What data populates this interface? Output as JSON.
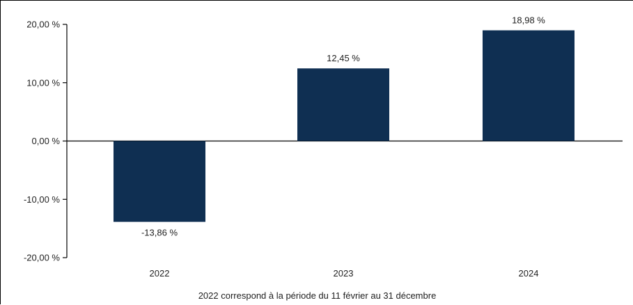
{
  "chart_data": {
    "type": "bar",
    "categories": [
      "2022",
      "2023",
      "2024"
    ],
    "values": [
      -13.86,
      12.45,
      18.98
    ],
    "value_labels": [
      "-13,86 %",
      "12,45 %",
      "18,98 %"
    ],
    "ylim": [
      -20,
      20
    ],
    "yticks": [
      20,
      10,
      0,
      -10,
      -20
    ],
    "ytick_labels": [
      "20,00 %",
      "10,00 %",
      "0,00 %",
      "-10,00 %",
      "-20,00 %"
    ],
    "bar_color": "#0f2f52",
    "grid": false,
    "title": "",
    "xlabel": "",
    "ylabel": ""
  },
  "footnote": "2022 correspond à la période du 11 février au 31 décembre"
}
